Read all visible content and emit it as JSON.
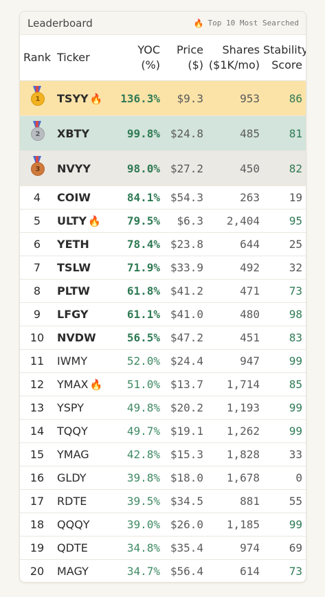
{
  "header": {
    "title": "Leaderboard",
    "badge_icon": "fire-icon",
    "badge_text": "Top 10 Most Searched"
  },
  "columns": {
    "rank": "Rank",
    "ticker": "Ticker",
    "yoc_line1": "YOC",
    "yoc_line2": "(%)",
    "price_line1": "Price",
    "price_line2": "($)",
    "shares_line1": "Shares",
    "shares_line2": "($1K/mo)",
    "stability_line1": "Stability",
    "stability_line2": "Score"
  },
  "medals": {
    "1": "1",
    "2": "2",
    "3": "3"
  },
  "colors": {
    "gold_row": "#fbe3a8",
    "silver_row": "#d2e4db",
    "bronze_row": "#ebe9e4",
    "positive_green": "#2f7a54"
  },
  "rows": [
    {
      "rank": "1",
      "ticker": "TSYY",
      "hot": true,
      "yoc": "136.3%",
      "price": "$9.3",
      "shares": "953",
      "stability": "86"
    },
    {
      "rank": "2",
      "ticker": "XBTY",
      "hot": false,
      "yoc": "99.8%",
      "price": "$24.8",
      "shares": "485",
      "stability": "81"
    },
    {
      "rank": "3",
      "ticker": "NVYY",
      "hot": false,
      "yoc": "98.0%",
      "price": "$27.2",
      "shares": "450",
      "stability": "82"
    },
    {
      "rank": "4",
      "ticker": "COIW",
      "hot": false,
      "yoc": "84.1%",
      "price": "$54.3",
      "shares": "263",
      "stability": "19"
    },
    {
      "rank": "5",
      "ticker": "ULTY",
      "hot": true,
      "yoc": "79.5%",
      "price": "$6.3",
      "shares": "2,404",
      "stability": "95"
    },
    {
      "rank": "6",
      "ticker": "YETH",
      "hot": false,
      "yoc": "78.4%",
      "price": "$23.8",
      "shares": "644",
      "stability": "25"
    },
    {
      "rank": "7",
      "ticker": "TSLW",
      "hot": false,
      "yoc": "71.9%",
      "price": "$33.9",
      "shares": "492",
      "stability": "32"
    },
    {
      "rank": "8",
      "ticker": "PLTW",
      "hot": false,
      "yoc": "61.8%",
      "price": "$41.2",
      "shares": "471",
      "stability": "73"
    },
    {
      "rank": "9",
      "ticker": "LFGY",
      "hot": false,
      "yoc": "61.1%",
      "price": "$41.0",
      "shares": "480",
      "stability": "98"
    },
    {
      "rank": "10",
      "ticker": "NVDW",
      "hot": false,
      "yoc": "56.5%",
      "price": "$47.2",
      "shares": "451",
      "stability": "83"
    },
    {
      "rank": "11",
      "ticker": "IWMY",
      "hot": false,
      "yoc": "52.0%",
      "price": "$24.4",
      "shares": "947",
      "stability": "99"
    },
    {
      "rank": "12",
      "ticker": "YMAX",
      "hot": true,
      "yoc": "51.0%",
      "price": "$13.7",
      "shares": "1,714",
      "stability": "85"
    },
    {
      "rank": "13",
      "ticker": "YSPY",
      "hot": false,
      "yoc": "49.8%",
      "price": "$20.2",
      "shares": "1,193",
      "stability": "99"
    },
    {
      "rank": "14",
      "ticker": "TQQY",
      "hot": false,
      "yoc": "49.7%",
      "price": "$19.1",
      "shares": "1,262",
      "stability": "99"
    },
    {
      "rank": "15",
      "ticker": "YMAG",
      "hot": false,
      "yoc": "42.8%",
      "price": "$15.3",
      "shares": "1,828",
      "stability": "33"
    },
    {
      "rank": "16",
      "ticker": "GLDY",
      "hot": false,
      "yoc": "39.8%",
      "price": "$18.0",
      "shares": "1,678",
      "stability": "0"
    },
    {
      "rank": "17",
      "ticker": "RDTE",
      "hot": false,
      "yoc": "39.5%",
      "price": "$34.5",
      "shares": "881",
      "stability": "55"
    },
    {
      "rank": "18",
      "ticker": "QQQY",
      "hot": false,
      "yoc": "39.0%",
      "price": "$26.0",
      "shares": "1,185",
      "stability": "99"
    },
    {
      "rank": "19",
      "ticker": "QDTE",
      "hot": false,
      "yoc": "34.8%",
      "price": "$35.4",
      "shares": "974",
      "stability": "69"
    },
    {
      "rank": "20",
      "ticker": "MAGY",
      "hot": false,
      "yoc": "34.7%",
      "price": "$56.4",
      "shares": "614",
      "stability": "73"
    }
  ]
}
